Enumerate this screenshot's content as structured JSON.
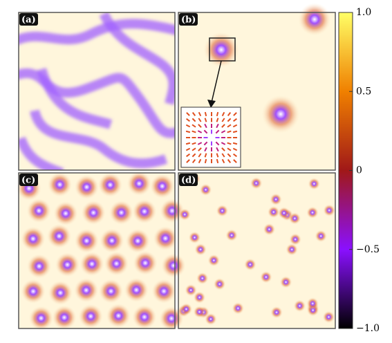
{
  "panels": [
    {
      "label": "(a)"
    },
    {
      "label": "(b)"
    },
    {
      "label": "(c)"
    },
    {
      "label": "(d)"
    }
  ],
  "colorbar": {
    "ylim": [
      -1,
      1
    ],
    "ticks": [
      {
        "value": 1,
        "label": "1.0"
      },
      0.5,
      0,
      {
        "value": -0.5,
        "label": "−0.5"
      },
      {
        "value": -1,
        "label": "−1.0"
      }
    ]
  }
}
